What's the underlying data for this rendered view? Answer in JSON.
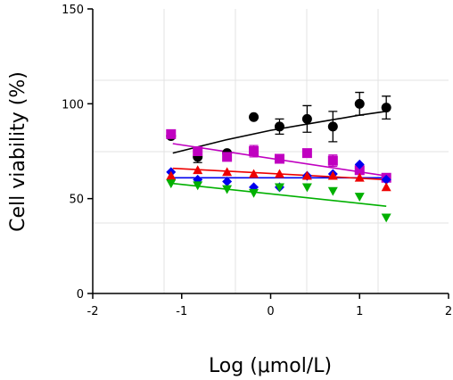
{
  "chart_data": {
    "type": "scatter",
    "x_label": "Log (μmol/L)",
    "y_label": "Cell viability (%)",
    "xlim": [
      -2,
      2
    ],
    "xticks": [
      -2,
      -1,
      0,
      1,
      2
    ],
    "ylim": [
      0,
      150
    ],
    "yticks": [
      0,
      50,
      100,
      150
    ],
    "x": [
      -1.12,
      -0.82,
      -0.49,
      -0.19,
      0.1,
      0.41,
      0.7,
      1.0,
      1.3
    ],
    "series": [
      {
        "color": "#000000",
        "marker": "circle",
        "values": [
          83,
          72,
          74,
          93,
          88,
          92,
          88,
          100,
          98
        ],
        "errors": [
          null,
          3,
          null,
          null,
          4,
          7,
          8,
          6,
          6
        ],
        "fit": {
          "x": [
            -1.1,
            -0.5,
            0,
            0.5,
            1.0,
            1.3
          ],
          "values": [
            74,
            81,
            86,
            90,
            94,
            96
          ]
        }
      },
      {
        "color": "#c000c0",
        "marker": "square",
        "values": [
          84,
          75,
          72,
          75,
          71,
          74,
          70,
          65,
          61
        ],
        "errors": [
          null,
          null,
          null,
          3,
          null,
          null,
          3,
          null,
          null
        ],
        "fit": {
          "x": [
            -1.1,
            1.3
          ],
          "values": [
            79,
            62
          ]
        }
      },
      {
        "color": "#0000ee",
        "marker": "diamond",
        "values": [
          64,
          60,
          59,
          56,
          56,
          62,
          63,
          68,
          60
        ],
        "errors": [
          null,
          null,
          null,
          null,
          null,
          null,
          null,
          null,
          null
        ],
        "fit": {
          "x": [
            -1.1,
            1.3
          ],
          "values": [
            61,
            61
          ]
        }
      },
      {
        "color": "#ee0000",
        "marker": "triangle",
        "values": [
          62,
          65,
          64,
          63,
          63,
          62,
          62,
          61,
          56
        ],
        "errors": [
          null,
          null,
          null,
          null,
          null,
          null,
          null,
          null,
          null
        ],
        "fit": {
          "x": [
            -1.1,
            1.3
          ],
          "values": [
            66,
            60
          ]
        }
      },
      {
        "color": "#00b000",
        "marker": "triangle-down",
        "values": [
          58,
          57,
          55,
          53,
          56,
          56,
          54,
          51,
          40
        ],
        "errors": [
          null,
          null,
          null,
          null,
          null,
          null,
          null,
          null,
          null
        ],
        "fit": {
          "x": [
            -1.1,
            1.3
          ],
          "values": [
            58,
            46
          ]
        }
      }
    ]
  }
}
